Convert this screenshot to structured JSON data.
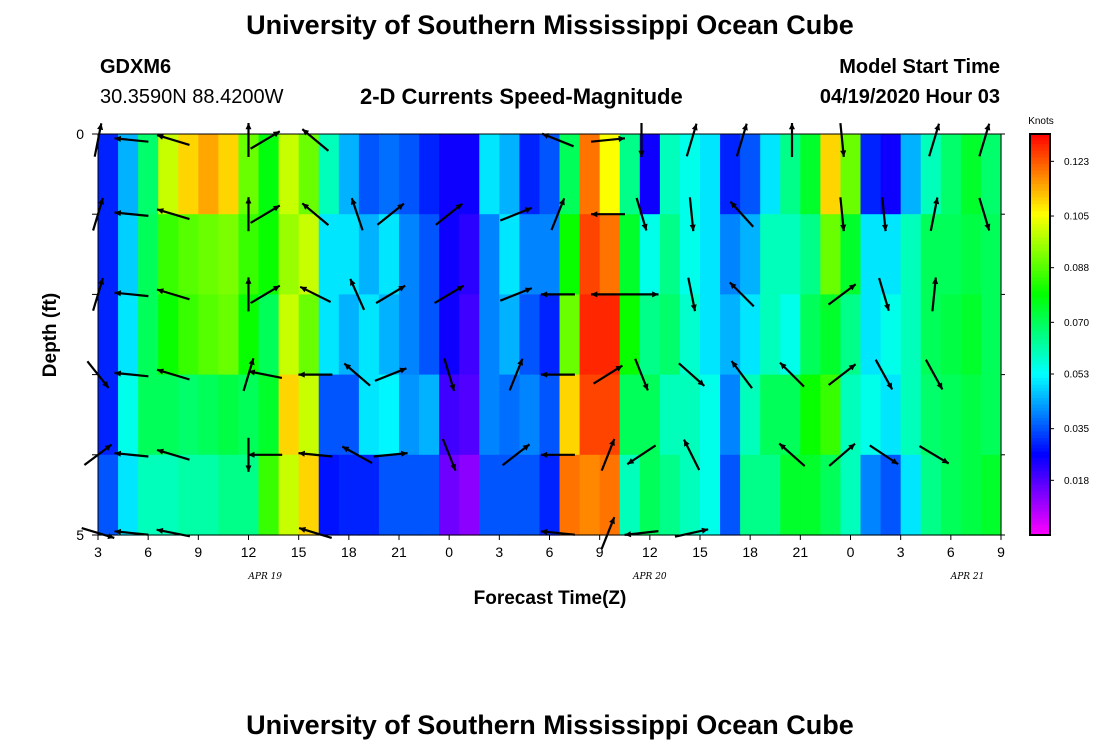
{
  "title": "University of Southern Mississippi Ocean Cube",
  "footer_title": "University of Southern Mississippi Ocean Cube",
  "station": {
    "name": "GDXM6",
    "coords": "30.3590N 88.4200W"
  },
  "subtitle": "2-D Currents Speed-Magnitude",
  "model": {
    "label": "Model Start Time",
    "value": "04/19/2020 Hour 03"
  },
  "chart_data": {
    "type": "heatmap",
    "title": "2-D Currents Speed-Magnitude",
    "xlabel": "Forecast Time(Z)",
    "ylabel": "Depth (ft)",
    "ylim": [
      0,
      5
    ],
    "x_tick_labels": [
      "3",
      "6",
      "9",
      "12",
      "15",
      "18",
      "21",
      "0",
      "3",
      "6",
      "9",
      "12",
      "15",
      "18",
      "21",
      "0",
      "3",
      "6",
      "9"
    ],
    "y_tick_labels": [
      "0",
      "5"
    ],
    "date_labels": [
      {
        "text": "APR 19",
        "x_hours": 10
      },
      {
        "text": "APR 20",
        "x_hours": 33
      },
      {
        "text": "APR 21",
        "x_hours": 52
      }
    ],
    "x_range_hours": [
      0,
      54
    ],
    "depth_rows": 5,
    "colorbar": {
      "unit": "Knots",
      "range": [
        0.0,
        0.132
      ],
      "ticks": [
        "0.123",
        "0.105",
        "0.088",
        "0.070",
        "0.053",
        "0.035",
        "0.018"
      ],
      "tick_values": [
        0.123,
        0.105,
        0.088,
        0.07,
        0.053,
        0.035,
        0.018
      ]
    },
    "speed_columns": [
      [
        0.03,
        0.03,
        0.03,
        0.03,
        0.035
      ],
      [
        0.045,
        0.048,
        0.05,
        0.055,
        0.05
      ],
      [
        0.068,
        0.07,
        0.07,
        0.07,
        0.06
      ],
      [
        0.1,
        0.085,
        0.08,
        0.07,
        0.06
      ],
      [
        0.11,
        0.088,
        0.085,
        0.068,
        0.062
      ],
      [
        0.115,
        0.09,
        0.088,
        0.07,
        0.062
      ],
      [
        0.11,
        0.092,
        0.09,
        0.072,
        0.065
      ],
      [
        0.09,
        0.085,
        0.08,
        0.07,
        0.065
      ],
      [
        0.078,
        0.08,
        0.07,
        0.075,
        0.085
      ],
      [
        0.1,
        0.095,
        0.1,
        0.11,
        0.1
      ],
      [
        0.09,
        0.1,
        0.09,
        0.1,
        0.11
      ],
      [
        0.06,
        0.05,
        0.05,
        0.035,
        0.028
      ],
      [
        0.045,
        0.05,
        0.045,
        0.035,
        0.03
      ],
      [
        0.035,
        0.045,
        0.05,
        0.05,
        0.03
      ],
      [
        0.038,
        0.05,
        0.045,
        0.052,
        0.035
      ],
      [
        0.035,
        0.04,
        0.04,
        0.042,
        0.035
      ],
      [
        0.03,
        0.035,
        0.035,
        0.045,
        0.035
      ],
      [
        0.025,
        0.025,
        0.025,
        0.02,
        0.015
      ],
      [
        0.025,
        0.022,
        0.02,
        0.018,
        0.012
      ],
      [
        0.05,
        0.04,
        0.04,
        0.04,
        0.035
      ],
      [
        0.045,
        0.05,
        0.045,
        0.038,
        0.035
      ],
      [
        0.03,
        0.04,
        0.035,
        0.04,
        0.035
      ],
      [
        0.035,
        0.04,
        0.03,
        0.035,
        0.03
      ],
      [
        0.07,
        0.08,
        0.09,
        0.11,
        0.12
      ],
      [
        0.12,
        0.125,
        0.128,
        0.125,
        0.118
      ],
      [
        0.105,
        0.12,
        0.128,
        0.125,
        0.12
      ],
      [
        0.065,
        0.075,
        0.08,
        0.07,
        0.06
      ],
      [
        0.025,
        0.055,
        0.065,
        0.07,
        0.07
      ],
      [
        0.06,
        0.065,
        0.068,
        0.06,
        0.065
      ],
      [
        0.055,
        0.055,
        0.058,
        0.06,
        0.06
      ],
      [
        0.05,
        0.05,
        0.05,
        0.055,
        0.055
      ],
      [
        0.03,
        0.04,
        0.045,
        0.04,
        0.035
      ],
      [
        0.035,
        0.045,
        0.05,
        0.06,
        0.065
      ],
      [
        0.05,
        0.06,
        0.06,
        0.07,
        0.065
      ],
      [
        0.065,
        0.06,
        0.055,
        0.07,
        0.075
      ],
      [
        0.075,
        0.065,
        0.07,
        0.08,
        0.075
      ],
      [
        0.11,
        0.09,
        0.075,
        0.085,
        0.07
      ],
      [
        0.09,
        0.075,
        0.065,
        0.06,
        0.06
      ],
      [
        0.03,
        0.05,
        0.05,
        0.055,
        0.04
      ],
      [
        0.025,
        0.05,
        0.055,
        0.05,
        0.035
      ],
      [
        0.045,
        0.06,
        0.06,
        0.06,
        0.05
      ],
      [
        0.06,
        0.07,
        0.07,
        0.068,
        0.065
      ],
      [
        0.068,
        0.07,
        0.072,
        0.07,
        0.07
      ],
      [
        0.075,
        0.072,
        0.075,
        0.072,
        0.072
      ],
      [
        0.068,
        0.07,
        0.07,
        0.07,
        0.075
      ]
    ],
    "vector_columns_hours": [
      0,
      2,
      4.5,
      9,
      10,
      13,
      15.5,
      17.5,
      21,
      25,
      27.5,
      30.5,
      32.5,
      35.5,
      38.5,
      41.5,
      44.5,
      47,
      50,
      53
    ],
    "vectors_u_v": [
      [
        [
          0.2,
          1.0
        ],
        [
          0.3,
          1.0
        ],
        [
          0.3,
          1.0
        ],
        [
          0.4,
          -0.5
        ],
        [
          0.4,
          0.3
        ],
        [
          1.0,
          -0.3
        ]
      ],
      [
        [
          -1.0,
          0.1
        ],
        [
          -1.0,
          0.1
        ],
        [
          -1.0,
          0.1
        ],
        [
          -1.0,
          0.1
        ],
        [
          -1.0,
          0.1
        ],
        [
          -1.0,
          0.1
        ]
      ],
      [
        [
          -1.0,
          0.3
        ],
        [
          -1.0,
          0.3
        ],
        [
          -1.0,
          0.3
        ],
        [
          -1.0,
          0.3
        ],
        [
          -1.0,
          0.3
        ],
        [
          -1.0,
          0.2
        ]
      ],
      [
        [
          0.0,
          1.0
        ],
        [
          0.0,
          1.0
        ],
        [
          0.0,
          1.0
        ],
        [
          0.3,
          1.0
        ],
        [
          0.0,
          -1.0
        ],
        [
          0.0,
          0.0
        ]
      ],
      [
        [
          1.0,
          0.6
        ],
        [
          1.0,
          0.6
        ],
        [
          1.0,
          0.6
        ],
        [
          -1.0,
          0.2
        ],
        [
          -1.0,
          0.0
        ],
        [
          0.0,
          0.0
        ]
      ],
      [
        [
          -0.6,
          0.5
        ],
        [
          -0.6,
          0.5
        ],
        [
          -0.8,
          0.4
        ],
        [
          -1.0,
          0.0
        ],
        [
          -1.0,
          0.1
        ],
        [
          -1.0,
          0.3
        ]
      ],
      [
        [
          0.0,
          0.0
        ],
        [
          -0.3,
          0.9
        ],
        [
          -0.4,
          0.9
        ],
        [
          -0.7,
          0.6
        ],
        [
          -0.9,
          0.5
        ],
        [
          0.0,
          0.0
        ]
      ],
      [
        [
          0.0,
          0.0
        ],
        [
          1.0,
          0.8
        ],
        [
          1.0,
          0.6
        ],
        [
          1.0,
          0.4
        ],
        [
          1.0,
          0.1
        ],
        [
          0.0,
          0.0
        ]
      ],
      [
        [
          0.0,
          0.0
        ],
        [
          1.0,
          0.8
        ],
        [
          1.0,
          0.6
        ],
        [
          0.3,
          -1.0
        ],
        [
          0.4,
          -1.0
        ],
        [
          0.0,
          0.0
        ]
      ],
      [
        [
          0.0,
          0.0
        ],
        [
          1.0,
          0.4
        ],
        [
          1.0,
          0.4
        ],
        [
          0.4,
          1.0
        ],
        [
          0.9,
          0.7
        ],
        [
          0.0,
          0.0
        ]
      ],
      [
        [
          -1.0,
          0.4
        ],
        [
          0.4,
          1.0
        ],
        [
          -1.0,
          0.0
        ],
        [
          -1.0,
          0.0
        ],
        [
          -1.0,
          0.0
        ],
        [
          -1.0,
          0.1
        ]
      ],
      [
        [
          1.0,
          0.1
        ],
        [
          -1.0,
          0.0
        ],
        [
          -1.0,
          0.0
        ],
        [
          0.8,
          0.5
        ],
        [
          0.4,
          1.0
        ],
        [
          0.4,
          1.0
        ]
      ],
      [
        [
          0.0,
          -1.0
        ],
        [
          0.3,
          -1.0
        ],
        [
          1.0,
          0.0
        ],
        [
          0.4,
          -1.0
        ],
        [
          -0.9,
          -0.6
        ],
        [
          -0.9,
          -0.1
        ]
      ],
      [
        [
          0.3,
          1.0
        ],
        [
          0.1,
          -1.0
        ],
        [
          0.2,
          -1.0
        ],
        [
          0.9,
          -0.8
        ],
        [
          -0.5,
          1.0
        ],
        [
          0.9,
          0.2
        ]
      ],
      [
        [
          0.3,
          1.0
        ],
        [
          -0.9,
          1.0
        ],
        [
          -0.8,
          0.8
        ],
        [
          -0.6,
          0.8
        ],
        [
          0.0,
          0.0
        ],
        [
          0.0,
          0.0
        ]
      ],
      [
        [
          0.0,
          1.0
        ],
        [
          0.0,
          0.0
        ],
        [
          0.0,
          0.0
        ],
        [
          -0.9,
          0.9
        ],
        [
          -0.9,
          0.8
        ],
        [
          0.0,
          0.0
        ]
      ],
      [
        [
          0.1,
          -1.0
        ],
        [
          0.1,
          -1.0
        ],
        [
          0.8,
          0.6
        ],
        [
          0.9,
          0.7
        ],
        [
          0.7,
          0.6
        ],
        [
          0.0,
          0.0
        ]
      ],
      [
        [
          0.0,
          0.0
        ],
        [
          0.1,
          -1.0
        ],
        [
          0.3,
          -1.0
        ],
        [
          0.5,
          -0.9
        ],
        [
          0.9,
          -0.6
        ],
        [
          0.0,
          0.0
        ]
      ],
      [
        [
          0.3,
          1.0
        ],
        [
          0.2,
          1.0
        ],
        [
          0.1,
          1.0
        ],
        [
          0.5,
          -0.9
        ],
        [
          1.0,
          -0.6
        ],
        [
          0.0,
          0.0
        ]
      ],
      [
        [
          0.3,
          1.0
        ],
        [
          0.3,
          -1.0
        ],
        [
          0.0,
          0.0
        ],
        [
          0.0,
          0.0
        ],
        [
          0.0,
          0.0
        ],
        [
          0.0,
          0.0
        ]
      ]
    ]
  }
}
